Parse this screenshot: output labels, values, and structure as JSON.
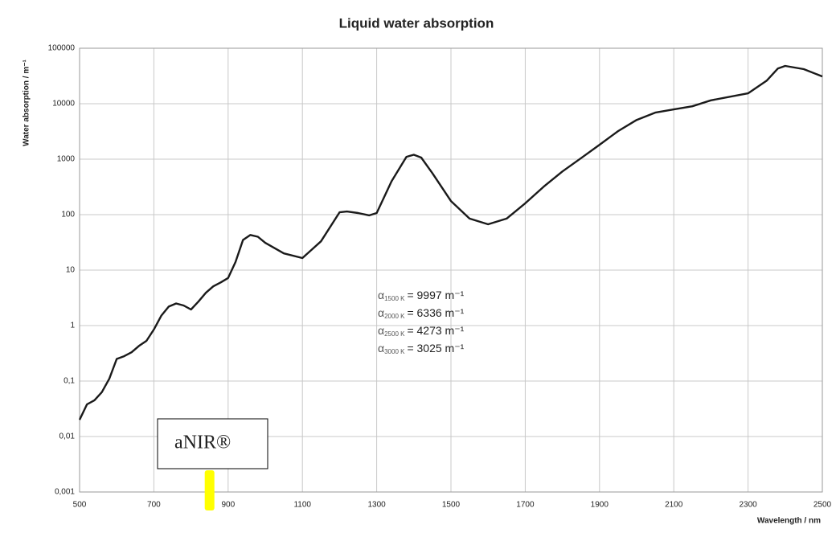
{
  "chart_data": {
    "type": "line",
    "title": "Liquid water absorption",
    "x_label": "Wavelength / nm",
    "y_label": "Water absorption / m⁻¹",
    "log_y": true,
    "grid": true,
    "x": [
      500,
      520,
      540,
      560,
      580,
      600,
      620,
      640,
      660,
      680,
      700,
      720,
      740,
      760,
      780,
      800,
      820,
      840,
      860,
      880,
      900,
      920,
      940,
      960,
      980,
      1000,
      1050,
      1100,
      1150,
      1200,
      1220,
      1250,
      1280,
      1300,
      1340,
      1380,
      1400,
      1420,
      1450,
      1500,
      1550,
      1600,
      1650,
      1700,
      1750,
      1800,
      1850,
      1900,
      1950,
      2000,
      2050,
      2100,
      2150,
      2200,
      2300,
      2350,
      2380,
      2400,
      2450,
      2500
    ],
    "series": [
      {
        "name": "Water absorption",
        "color": "#1a1a1a",
        "values": [
          0.02,
          0.038,
          0.045,
          0.063,
          0.11,
          0.25,
          0.28,
          0.33,
          0.43,
          0.53,
          0.85,
          1.5,
          2.2,
          2.5,
          2.3,
          1.95,
          2.7,
          3.9,
          5.1,
          6,
          7.2,
          14,
          35,
          43,
          40,
          31,
          20,
          16.5,
          33,
          110,
          114,
          107,
          97,
          107,
          400,
          1100,
          1200,
          1070,
          560,
          176,
          85,
          67,
          85,
          160,
          320,
          600,
          1040,
          1820,
          3200,
          5100,
          6900,
          7900,
          9000,
          11500,
          15400,
          26000,
          43000,
          48000,
          42000,
          31000
        ]
      }
    ],
    "xlim": [
      500,
      2500
    ],
    "xticks": [
      500,
      700,
      900,
      1100,
      1300,
      1500,
      1700,
      1900,
      2100,
      2300,
      2500
    ],
    "ylim": [
      0.001,
      100000
    ],
    "yticks": [
      {
        "value": 0.001,
        "label": "0,001"
      },
      {
        "value": 0.01,
        "label": "0,01"
      },
      {
        "value": 0.1,
        "label": "0,1"
      },
      1,
      10,
      100,
      1000,
      10000,
      100000
    ],
    "annotations": [
      {
        "symbol": "α",
        "subscript": "1500 K",
        "text": "= 9997 m⁻¹"
      },
      {
        "symbol": "α",
        "subscript": "2000 K",
        "text": "= 6336 m⁻¹"
      },
      {
        "symbol": "α",
        "subscript": "2500 K",
        "text": "= 4273 m⁻¹"
      },
      {
        "symbol": "α",
        "subscript": "3000 K",
        "text": "= 3025 m⁻¹"
      }
    ],
    "label_box": "aNIR®",
    "highlight": {
      "x": 850,
      "color": "#ffff00"
    }
  }
}
